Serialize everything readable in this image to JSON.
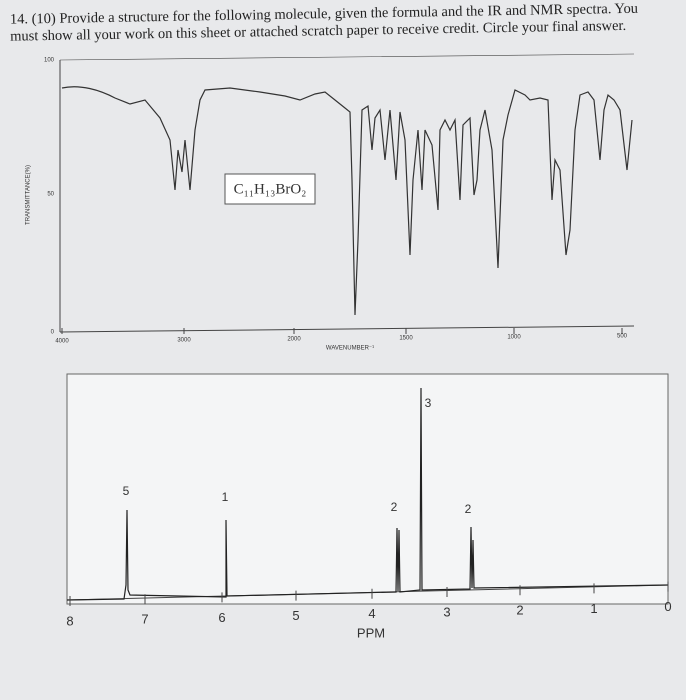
{
  "question": {
    "text": "14. (10) Provide a structure for the following molecule, given the formula and the IR and NMR spectra. You must show all your work on this sheet or attached scratch paper to receive credit. Circle your final answer."
  },
  "ir": {
    "y_axis_label": "TRANSMITTANCE(%)",
    "yticks": [
      "100",
      "50",
      "0"
    ],
    "xticks": [
      "4000",
      "3000",
      "2000",
      "1500",
      "1000",
      "500"
    ],
    "x_axis_label": "WAVENUMBER⁻¹",
    "formula": "C₁₁H₁₃BrO₂"
  },
  "nmr": {
    "xticks": [
      "8",
      "7",
      "6",
      "5",
      "4",
      "3",
      "2",
      "1",
      "0"
    ],
    "x_axis_label": "PPM",
    "integrations": [
      "5",
      "1",
      "2",
      "3",
      "2"
    ]
  }
}
